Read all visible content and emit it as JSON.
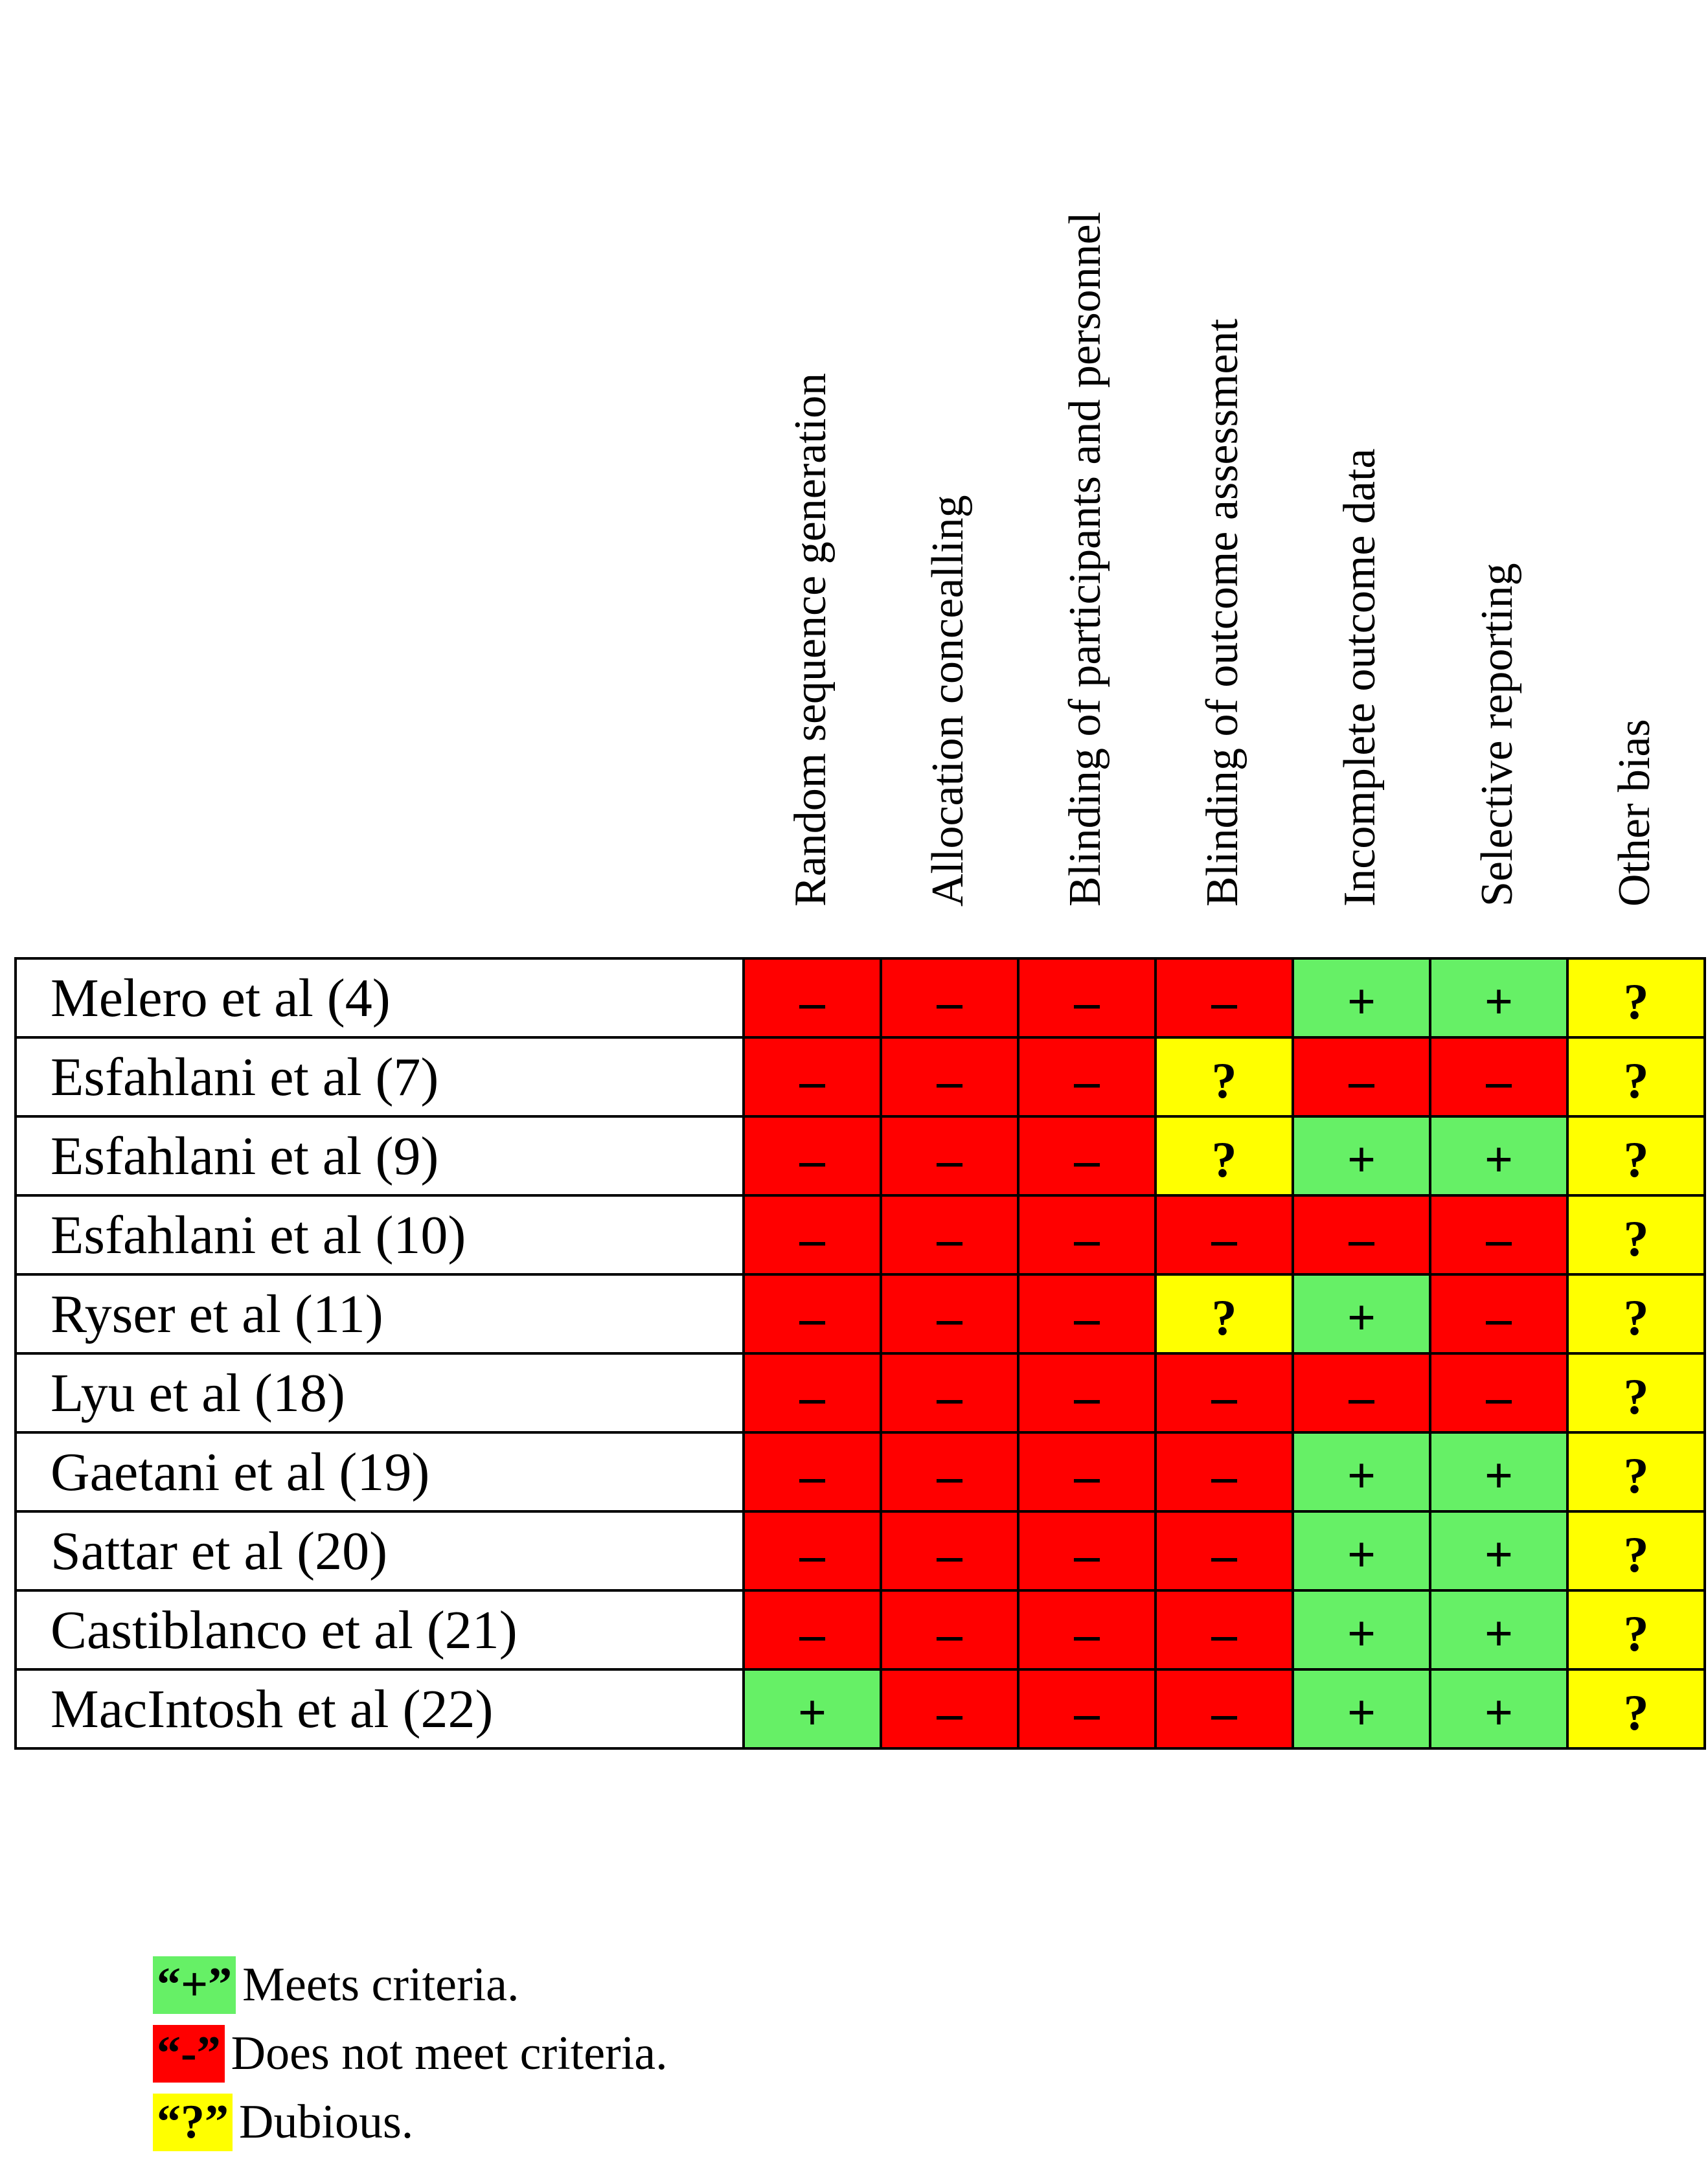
{
  "chart_data": {
    "type": "table",
    "title": "",
    "columns": [
      "Random sequence generation",
      "Allocation concealling",
      "Blinding of participants and personnel",
      "Blinding of outcome assessment",
      "Incomplete outcome data",
      "Selective reporting",
      "Other bias"
    ],
    "rows": [
      {
        "study": "Melero et al (4)",
        "ratings": [
          "-",
          "-",
          "-",
          "-",
          "+",
          "+",
          "?"
        ]
      },
      {
        "study": "Esfahlani et al (7)",
        "ratings": [
          "-",
          "-",
          "-",
          "?",
          "-",
          "-",
          "?"
        ]
      },
      {
        "study": "Esfahlani et al (9)",
        "ratings": [
          "-",
          "-",
          "-",
          "?",
          "+",
          "+",
          "?"
        ]
      },
      {
        "study": "Esfahlani et al (10)",
        "ratings": [
          "-",
          "-",
          "-",
          "-",
          "-",
          "-",
          "?"
        ]
      },
      {
        "study": "Ryser et al (11)",
        "ratings": [
          "-",
          "-",
          "-",
          "?",
          "+",
          "-",
          "?"
        ]
      },
      {
        "study": "Lyu et al (18)",
        "ratings": [
          "-",
          "-",
          "-",
          "-",
          "-",
          "-",
          "?"
        ]
      },
      {
        "study": "Gaetani et al (19)",
        "ratings": [
          "-",
          "-",
          "-",
          "-",
          "+",
          "+",
          "?"
        ]
      },
      {
        "study": "Sattar et al (20)",
        "ratings": [
          "-",
          "-",
          "-",
          "-",
          "+",
          "+",
          "?"
        ]
      },
      {
        "study": "Castiblanco et al (21)",
        "ratings": [
          "-",
          "-",
          "-",
          "-",
          "+",
          "+",
          "?"
        ]
      },
      {
        "study": "MacIntosh et al (22)",
        "ratings": [
          "+",
          "-",
          "-",
          "-",
          "+",
          "+",
          "?"
        ]
      }
    ],
    "legend": [
      {
        "symbol": "“+”",
        "label": "Meets criteria.",
        "color": "#66f066"
      },
      {
        "symbol": "“-”",
        "label": "Does not meet criteria.",
        "color": "#ff0000"
      },
      {
        "symbol": "“?”",
        "label": "Dubious.",
        "color": "#ffff00"
      }
    ],
    "rating_colors": {
      "+": "#66f066",
      "-": "#ff0000",
      "?": "#ffff00"
    },
    "display_symbols": {
      "+": "+",
      "-": "–",
      "?": "?"
    }
  }
}
